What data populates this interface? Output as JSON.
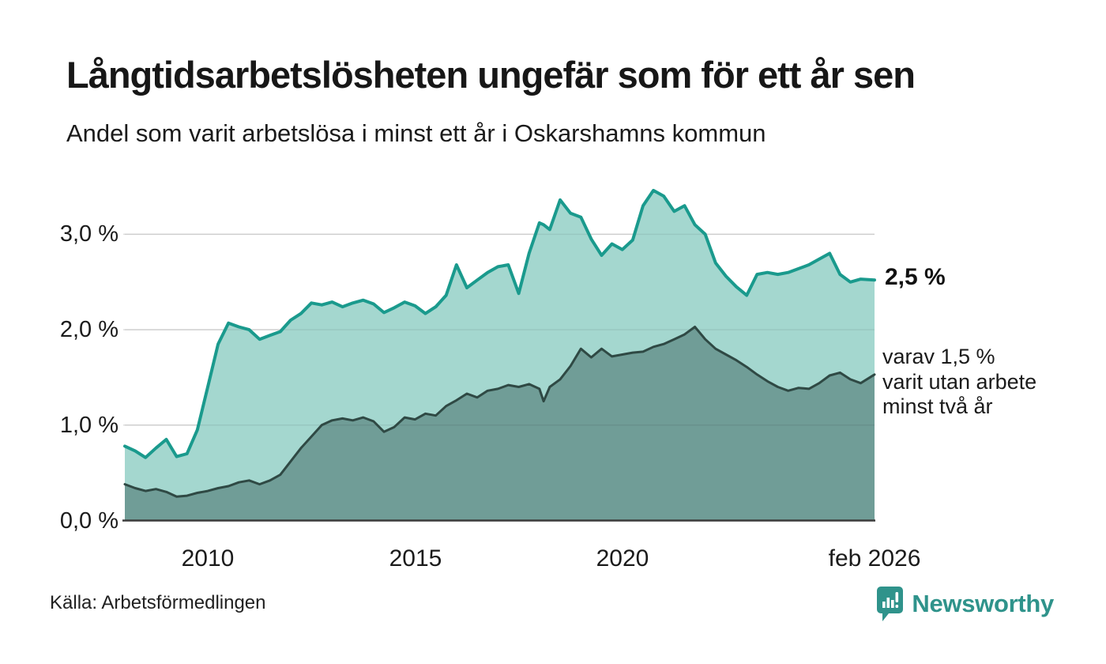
{
  "header": {
    "title": "Långtidsarbetslösheten ungefär som för ett år sen",
    "subtitle": "Andel som varit arbetslösa i minst ett år i Oskarshamns kommun"
  },
  "chart_data": {
    "type": "area",
    "title": "Långtidsarbetslösheten ungefär som för ett år sen",
    "subtitle": "Andel som varit arbetslösa i minst ett år i Oskarshamns kommun",
    "x_unit": "year (decimal, monthly data)",
    "xlim": [
      2008,
      2026.25
    ],
    "ylim": [
      0,
      3.6
    ],
    "grid": "horizontal",
    "legend_position": "none",
    "x": [
      2008.0,
      2008.25,
      2008.5,
      2008.75,
      2009.0,
      2009.25,
      2009.5,
      2009.75,
      2010.0,
      2010.25,
      2010.5,
      2010.75,
      2011.0,
      2011.25,
      2011.5,
      2011.75,
      2012.0,
      2012.25,
      2012.5,
      2012.75,
      2013.0,
      2013.25,
      2013.5,
      2013.75,
      2014.0,
      2014.25,
      2014.5,
      2014.75,
      2015.0,
      2015.25,
      2015.5,
      2015.75,
      2016.0,
      2016.25,
      2016.5,
      2016.75,
      2017.0,
      2017.25,
      2017.5,
      2017.75,
      2018.0,
      2018.1,
      2018.25,
      2018.5,
      2018.75,
      2019.0,
      2019.25,
      2019.5,
      2019.75,
      2020.0,
      2020.25,
      2020.5,
      2020.75,
      2021.0,
      2021.25,
      2021.5,
      2021.75,
      2022.0,
      2022.25,
      2022.5,
      2022.75,
      2023.0,
      2023.25,
      2023.5,
      2023.75,
      2024.0,
      2024.25,
      2024.5,
      2024.75,
      2025.0,
      2025.25,
      2025.5,
      2025.75,
      2026.083
    ],
    "series": [
      {
        "name": "Andel som varit arbetslösa i minst ett år",
        "color": "#1a9a8d",
        "fill": "#a4d7cf",
        "end_value_pct": "2,5 %",
        "values": [
          0.78,
          0.73,
          0.66,
          0.76,
          0.85,
          0.67,
          0.7,
          0.95,
          1.4,
          1.85,
          2.07,
          2.03,
          2.0,
          1.9,
          1.94,
          1.98,
          2.1,
          2.17,
          2.28,
          2.26,
          2.29,
          2.24,
          2.28,
          2.31,
          2.27,
          2.18,
          2.23,
          2.29,
          2.25,
          2.17,
          2.24,
          2.36,
          2.68,
          2.44,
          2.52,
          2.6,
          2.66,
          2.68,
          2.38,
          2.8,
          3.12,
          3.1,
          3.05,
          3.36,
          3.22,
          3.18,
          2.95,
          2.78,
          2.9,
          2.84,
          2.94,
          3.3,
          3.46,
          3.4,
          3.24,
          3.3,
          3.1,
          3.0,
          2.7,
          2.56,
          2.45,
          2.36,
          2.58,
          2.6,
          2.58,
          2.6,
          2.64,
          2.68,
          2.74,
          2.8,
          2.58,
          2.5,
          2.53,
          2.52
        ]
      },
      {
        "name": "varav varit utan arbete minst två år",
        "color": "#2f4944",
        "fill": "#709d97",
        "end_value_pct": "1,5 %",
        "values": [
          0.38,
          0.34,
          0.31,
          0.33,
          0.3,
          0.25,
          0.26,
          0.29,
          0.31,
          0.34,
          0.36,
          0.4,
          0.42,
          0.38,
          0.42,
          0.48,
          0.62,
          0.76,
          0.88,
          1.0,
          1.05,
          1.07,
          1.05,
          1.08,
          1.04,
          0.93,
          0.98,
          1.08,
          1.06,
          1.12,
          1.1,
          1.2,
          1.26,
          1.33,
          1.29,
          1.36,
          1.38,
          1.42,
          1.4,
          1.43,
          1.38,
          1.25,
          1.4,
          1.48,
          1.62,
          1.8,
          1.71,
          1.8,
          1.72,
          1.74,
          1.76,
          1.77,
          1.82,
          1.85,
          1.9,
          1.95,
          2.03,
          1.9,
          1.8,
          1.74,
          1.68,
          1.61,
          1.53,
          1.46,
          1.4,
          1.36,
          1.39,
          1.38,
          1.44,
          1.52,
          1.55,
          1.48,
          1.44,
          1.53
        ]
      }
    ],
    "yticks": [
      {
        "value": 0,
        "label": "0,0 %"
      },
      {
        "value": 1,
        "label": "1,0 %"
      },
      {
        "value": 2,
        "label": "2,0 %"
      },
      {
        "value": 3,
        "label": "3,0 %"
      }
    ],
    "xticks": [
      {
        "value": 2010,
        "label": "2010"
      },
      {
        "value": 2015,
        "label": "2015"
      },
      {
        "value": 2020,
        "label": "2020"
      },
      {
        "value": 2026.083,
        "label": "feb 2026"
      }
    ],
    "annotations": {
      "end_value": "2,5 %",
      "end_note": "varav 1,5 %\nvarit utan arbete\nminst två år"
    }
  },
  "footer": {
    "source": "Källa: Arbetsförmedlingen",
    "brand": "Newsworthy"
  },
  "colors": {
    "line_top": "#1a9a8d",
    "fill_top": "#a4d7cf",
    "line_bottom": "#2f4944",
    "fill_bottom": "#709d97",
    "gridline": "#dedede",
    "axis": "#3c3c3c",
    "brand_teal": "#2f938b",
    "text": "#1a1a1a"
  }
}
